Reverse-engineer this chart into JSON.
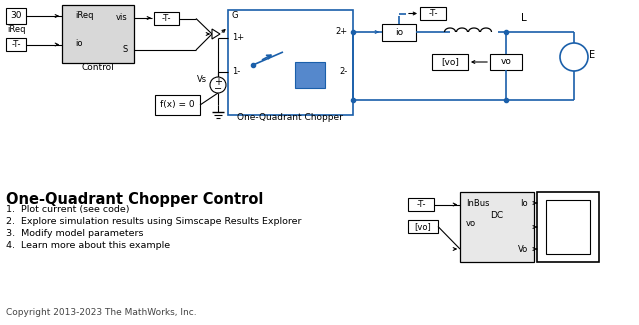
{
  "bg_color": "#ffffff",
  "title": "One-Quadrant Chopper Control",
  "items": [
    "1.  Plot current (see code)",
    "2.  Explore simulation results using Simscape Results Explorer",
    "3.  Modify model parameters",
    "4.  Learn more about this example"
  ],
  "copyright": "Copyright 2013-2023 The MathWorks, Inc.",
  "lc": "#000000",
  "bc": "#1a5faa",
  "gf": "#d8d8d8",
  "gf2": "#e8e8e8"
}
